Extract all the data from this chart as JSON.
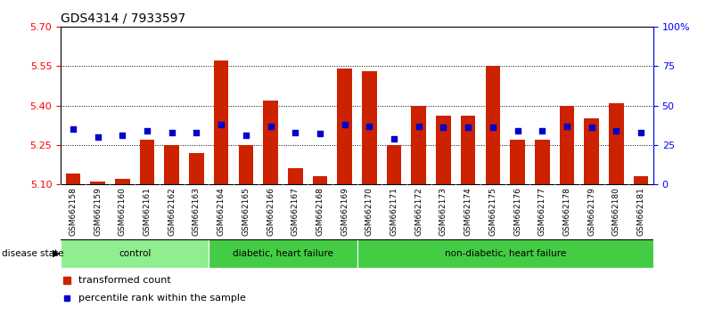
{
  "title": "GDS4314 / 7933597",
  "samples": [
    "GSM662158",
    "GSM662159",
    "GSM662160",
    "GSM662161",
    "GSM662162",
    "GSM662163",
    "GSM662164",
    "GSM662165",
    "GSM662166",
    "GSM662167",
    "GSM662168",
    "GSM662169",
    "GSM662170",
    "GSM662171",
    "GSM662172",
    "GSM662173",
    "GSM662174",
    "GSM662175",
    "GSM662176",
    "GSM662177",
    "GSM662178",
    "GSM662179",
    "GSM662180",
    "GSM662181"
  ],
  "transformed_count": [
    5.14,
    5.11,
    5.12,
    5.27,
    5.25,
    5.22,
    5.57,
    5.25,
    5.42,
    5.16,
    5.13,
    5.54,
    5.53,
    5.25,
    5.4,
    5.36,
    5.36,
    5.55,
    5.27,
    5.27,
    5.4,
    5.35,
    5.41,
    5.13
  ],
  "percentile_rank": [
    35,
    30,
    31,
    34,
    33,
    33,
    38,
    31,
    37,
    33,
    32,
    38,
    37,
    29,
    37,
    36,
    36,
    36,
    34,
    34,
    37,
    36,
    34,
    33
  ],
  "groups": [
    {
      "label": "control",
      "start": 0,
      "end": 6,
      "color": "#90EE90"
    },
    {
      "label": "diabetic, heart failure",
      "start": 6,
      "end": 12,
      "color": "#44CC44"
    },
    {
      "label": "non-diabetic, heart failure",
      "start": 12,
      "end": 24,
      "color": "#44CC44"
    }
  ],
  "ylim_left": [
    5.1,
    5.7
  ],
  "ylim_right": [
    0,
    100
  ],
  "yticks_left": [
    5.1,
    5.25,
    5.4,
    5.55,
    5.7
  ],
  "yticks_right": [
    0,
    25,
    50,
    75,
    100
  ],
  "bar_color": "#CC2200",
  "dot_color": "#0000CC",
  "bar_width": 0.6,
  "xtick_bg": "#CCCCCC",
  "plot_bg": "#FFFFFF",
  "group_border_color": "#FFFFFF"
}
